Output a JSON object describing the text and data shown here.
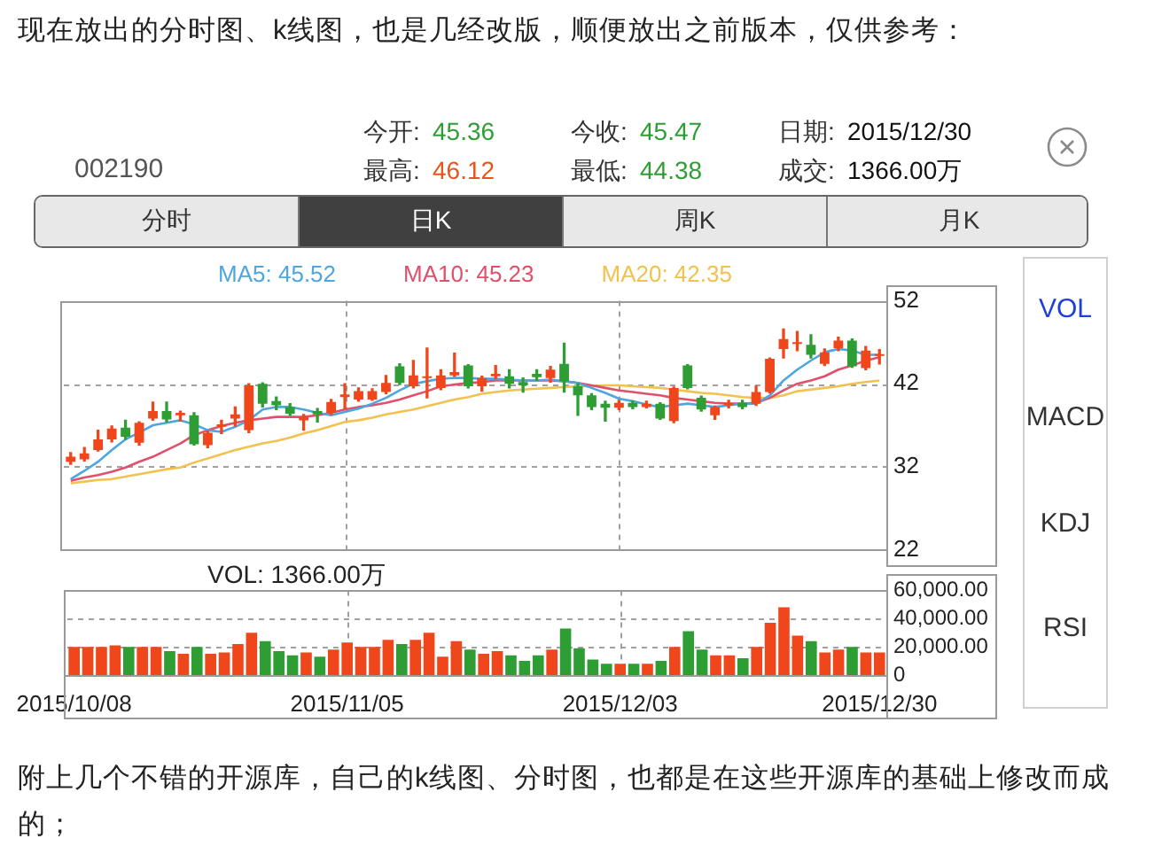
{
  "chart_data": [
    {
      "type": "candlestick",
      "categories": [
        "2015/10/08",
        null,
        null,
        null,
        null,
        null,
        null,
        null,
        null,
        null,
        null,
        null,
        null,
        null,
        null,
        null,
        null,
        null,
        null,
        null,
        "2015/11/05",
        null,
        null,
        null,
        null,
        null,
        null,
        null,
        null,
        null,
        null,
        null,
        null,
        null,
        null,
        null,
        null,
        null,
        null,
        null,
        "2015/12/03",
        null,
        null,
        null,
        null,
        null,
        null,
        null,
        null,
        null,
        null,
        null,
        null,
        null,
        null,
        null,
        null,
        null,
        null,
        "2015/12/30"
      ],
      "ohlc": [
        [
          32.6,
          33.7,
          32.3,
          33.2
        ],
        [
          32.9,
          34.3,
          32.7,
          33.6
        ],
        [
          34.0,
          36.4,
          33.9,
          35.3
        ],
        [
          35.3,
          36.9,
          35.0,
          36.6
        ],
        [
          36.7,
          37.6,
          35.3,
          35.6
        ],
        [
          34.9,
          37.4,
          34.6,
          37.3
        ],
        [
          37.8,
          39.8,
          37.6,
          38.7
        ],
        [
          38.7,
          39.8,
          37.4,
          37.7
        ],
        [
          38.2,
          38.7,
          37.5,
          38.5
        ],
        [
          38.2,
          38.5,
          34.6,
          34.7
        ],
        [
          34.6,
          36.3,
          34.3,
          36.1
        ],
        [
          36.8,
          37.6,
          36.0,
          37.1
        ],
        [
          37.8,
          39.2,
          36.9,
          38.3
        ],
        [
          36.4,
          42.0,
          36.1,
          41.8
        ],
        [
          42.0,
          42.1,
          39.2,
          39.6
        ],
        [
          39.9,
          40.4,
          38.9,
          39.4
        ],
        [
          39.2,
          39.6,
          38.2,
          38.4
        ],
        [
          37.6,
          38.3,
          36.4,
          38.0
        ],
        [
          38.7,
          39.0,
          37.4,
          38.3
        ],
        [
          38.5,
          40.1,
          38.3,
          39.8
        ],
        [
          40.4,
          42.0,
          39.0,
          40.7
        ],
        [
          40.1,
          41.5,
          39.9,
          41.1
        ],
        [
          40.1,
          41.4,
          40.0,
          41.1
        ],
        [
          41.0,
          43.0,
          40.8,
          42.1
        ],
        [
          44.1,
          44.4,
          41.9,
          42.1
        ],
        [
          41.7,
          44.8,
          41.5,
          43.0
        ],
        [
          42.7,
          46.3,
          40.3,
          42.9
        ],
        [
          41.5,
          43.7,
          41.3,
          43.0
        ],
        [
          43.0,
          45.7,
          42.9,
          43.4
        ],
        [
          44.2,
          44.3,
          41.5,
          41.7
        ],
        [
          41.7,
          42.9,
          41.1,
          42.7
        ],
        [
          42.9,
          44.2,
          42.6,
          43.2
        ],
        [
          42.9,
          43.7,
          41.5,
          42.0
        ],
        [
          42.2,
          42.7,
          41.0,
          41.8
        ],
        [
          43.2,
          43.7,
          42.4,
          42.8
        ],
        [
          42.7,
          44.1,
          42.2,
          43.7
        ],
        [
          44.4,
          46.9,
          41.0,
          42.3
        ],
        [
          41.7,
          42.0,
          38.2,
          40.6
        ],
        [
          40.6,
          40.8,
          38.9,
          39.2
        ],
        [
          39.6,
          39.9,
          37.5,
          39.1
        ],
        [
          39.1,
          40.0,
          38.9,
          39.7
        ],
        [
          39.7,
          39.9,
          39.0,
          39.2
        ],
        [
          39.2,
          39.9,
          39.1,
          39.6
        ],
        [
          39.6,
          39.7,
          37.7,
          37.8
        ],
        [
          37.5,
          41.6,
          37.3,
          41.5
        ],
        [
          44.2,
          44.3,
          41.4,
          41.5
        ],
        [
          40.3,
          40.5,
          38.7,
          38.9
        ],
        [
          38.2,
          39.3,
          37.7,
          39.2
        ],
        [
          39.4,
          40.0,
          39.1,
          39.7
        ],
        [
          39.7,
          40.0,
          39.0,
          39.2
        ],
        [
          39.6,
          41.7,
          39.4,
          41.0
        ],
        [
          41.0,
          45.1,
          40.9,
          45.0
        ],
        [
          46.2,
          48.6,
          45.1,
          47.4
        ],
        [
          46.8,
          48.3,
          46.0,
          46.9
        ],
        [
          46.7,
          47.9,
          45.1,
          45.5
        ],
        [
          44.4,
          46.2,
          44.2,
          45.8
        ],
        [
          46.3,
          47.6,
          46.0,
          47.2
        ],
        [
          47.2,
          47.4,
          44.0,
          44.1
        ],
        [
          43.9,
          46.5,
          43.7,
          46.0
        ],
        [
          45.36,
          46.12,
          44.38,
          45.47
        ]
      ],
      "colors": [
        "#f0461c",
        "#f0461c",
        "#f0461c",
        "#f0461c",
        "#2e9e34",
        "#f0461c",
        "#f0461c",
        "#2e9e34",
        "#f0461c",
        "#2e9e34",
        "#f0461c",
        "#f0461c",
        "#f0461c",
        "#f0461c",
        "#2e9e34",
        "#2e9e34",
        "#2e9e34",
        "#f0461c",
        "#2e9e34",
        "#f0461c",
        "#f0461c",
        "#f0461c",
        "#f0461c",
        "#f0461c",
        "#2e9e34",
        "#f0461c",
        "#f0461c",
        "#f0461c",
        "#f0461c",
        "#2e9e34",
        "#f0461c",
        "#f0461c",
        "#2e9e34",
        "#2e9e34",
        "#2e9e34",
        "#f0461c",
        "#2e9e34",
        "#2e9e34",
        "#2e9e34",
        "#2e9e34",
        "#f0461c",
        "#2e9e34",
        "#f0461c",
        "#2e9e34",
        "#f0461c",
        "#2e9e34",
        "#2e9e34",
        "#f0461c",
        "#f0461c",
        "#2e9e34",
        "#f0461c",
        "#f0461c",
        "#f0461c",
        "#f0461c",
        "#2e9e34",
        "#f0461c",
        "#f0461c",
        "#2e9e34",
        "#f0461c",
        "#f0461c"
      ],
      "series": [
        {
          "name": "MA5: 45.52",
          "type": "line",
          "color": "#4da6e0",
          "values": [
            30.5,
            31.5,
            32.6,
            34.0,
            35.3,
            36.1,
            37.0,
            37.3,
            37.6,
            37.1,
            36.4,
            36.2,
            36.8,
            37.6,
            38.9,
            39.2,
            39.2,
            38.9,
            38.5,
            38.2,
            38.6,
            39.0,
            39.6,
            40.3,
            41.2,
            42.0,
            42.3,
            42.6,
            42.7,
            42.7,
            42.6,
            42.6,
            42.5,
            42.4,
            42.4,
            42.5,
            42.3,
            42.1,
            41.5,
            40.9,
            40.2,
            39.9,
            39.5,
            39.2,
            39.4,
            39.6,
            39.4,
            39.2,
            39.4,
            39.6,
            39.6,
            40.6,
            42.4,
            43.7,
            44.8,
            45.8,
            46.2,
            46.0,
            45.5,
            45.5
          ]
        },
        {
          "name": "MA10: 45.23",
          "type": "line",
          "color": "#e0506a",
          "values": [
            30.3,
            30.7,
            31.0,
            31.4,
            31.9,
            32.6,
            33.2,
            34.0,
            34.8,
            35.8,
            36.4,
            36.9,
            37.3,
            37.6,
            37.8,
            38.0,
            38.0,
            38.0,
            38.2,
            38.5,
            38.9,
            39.2,
            39.4,
            39.7,
            40.1,
            40.6,
            41.1,
            41.7,
            41.9,
            42.1,
            42.2,
            42.4,
            42.4,
            42.4,
            42.4,
            42.4,
            42.3,
            42.1,
            41.8,
            41.5,
            41.2,
            41.0,
            40.8,
            40.6,
            40.3,
            40.1,
            39.9,
            39.7,
            39.6,
            39.6,
            39.7,
            40.3,
            41.2,
            42.0,
            42.4,
            42.9,
            43.7,
            44.2,
            44.8,
            45.2
          ]
        },
        {
          "name": "MA20: 42.35",
          "type": "line",
          "color": "#f2c14e",
          "values": [
            30.0,
            30.2,
            30.4,
            30.5,
            30.8,
            31.1,
            31.4,
            31.7,
            31.9,
            32.5,
            33.0,
            33.5,
            34.0,
            34.4,
            34.8,
            35.1,
            35.5,
            36.0,
            36.4,
            36.9,
            37.4,
            37.6,
            37.9,
            38.3,
            38.6,
            38.9,
            39.3,
            39.7,
            40.1,
            40.4,
            40.8,
            41.0,
            41.2,
            41.3,
            41.4,
            41.5,
            41.6,
            41.7,
            41.7,
            41.8,
            41.8,
            41.7,
            41.6,
            41.5,
            41.3,
            41.1,
            40.9,
            40.8,
            40.6,
            40.4,
            40.3,
            40.3,
            40.6,
            41.1,
            41.3,
            41.5,
            41.7,
            42.0,
            42.2,
            42.4
          ]
        }
      ],
      "ylim": [
        22,
        52
      ],
      "yticks": [
        22,
        32,
        42,
        52
      ],
      "grid": true,
      "legend": "top",
      "tick_labels": "y",
      "annotations": [
        "现在放出的分时图、k线图，也是几经改版，顺便放出之前版本，仅供参考：",
        "002190",
        "今开:",
        "45.36",
        "最高:",
        "46.12",
        "今收:",
        "45.47",
        "最低:",
        "44.38",
        "日期:",
        "2015/12/30",
        "成交:",
        "1366.00万",
        "分时",
        "日K",
        "周K",
        "月K",
        "VOL",
        "MACD",
        "KDJ",
        "RSI",
        "附上几个不错的开源库，自己的k线图、分时图，也都是在这些开源库的基础上修改而成的；"
      ]
    },
    {
      "type": "bar",
      "title": "VOL: 1366.00万",
      "categories": [
        "2015/10/08",
        null,
        null,
        null,
        null,
        null,
        null,
        null,
        null,
        null,
        null,
        null,
        null,
        null,
        null,
        null,
        null,
        null,
        null,
        null,
        "2015/11/05",
        null,
        null,
        null,
        null,
        null,
        null,
        null,
        null,
        null,
        null,
        null,
        null,
        null,
        null,
        null,
        null,
        null,
        null,
        null,
        "2015/12/03",
        null,
        null,
        null,
        null,
        null,
        null,
        null,
        null,
        null,
        null,
        null,
        null,
        null,
        null,
        null,
        null,
        null,
        null,
        "2015/12/30"
      ],
      "values": [
        20000,
        20000,
        20000,
        21000,
        20000,
        20000,
        20000,
        17000,
        15000,
        20000,
        15000,
        16000,
        22000,
        30000,
        24000,
        17000,
        14000,
        16000,
        13000,
        18000,
        23000,
        20000,
        20000,
        25000,
        22000,
        25000,
        30000,
        13000,
        24000,
        18000,
        15000,
        17000,
        14000,
        10000,
        14000,
        18000,
        33000,
        19000,
        11000,
        8000,
        8000,
        8000,
        8000,
        10000,
        20000,
        31000,
        18000,
        14000,
        14000,
        12000,
        20000,
        37000,
        48000,
        28000,
        24000,
        16000,
        18000,
        20000,
        16000,
        16000
      ],
      "colors": [
        "#f0461c",
        "#f0461c",
        "#f0461c",
        "#f0461c",
        "#2e9e34",
        "#f0461c",
        "#f0461c",
        "#2e9e34",
        "#f0461c",
        "#2e9e34",
        "#f0461c",
        "#f0461c",
        "#f0461c",
        "#f0461c",
        "#2e9e34",
        "#2e9e34",
        "#2e9e34",
        "#f0461c",
        "#2e9e34",
        "#f0461c",
        "#f0461c",
        "#f0461c",
        "#f0461c",
        "#f0461c",
        "#2e9e34",
        "#f0461c",
        "#f0461c",
        "#f0461c",
        "#f0461c",
        "#2e9e34",
        "#f0461c",
        "#f0461c",
        "#2e9e34",
        "#2e9e34",
        "#2e9e34",
        "#f0461c",
        "#2e9e34",
        "#2e9e34",
        "#2e9e34",
        "#2e9e34",
        "#f0461c",
        "#2e9e34",
        "#f0461c",
        "#2e9e34",
        "#f0461c",
        "#2e9e34",
        "#2e9e34",
        "#f0461c",
        "#f0461c",
        "#2e9e34",
        "#f0461c",
        "#f0461c",
        "#f0461c",
        "#f0461c",
        "#2e9e34",
        "#f0461c",
        "#f0461c",
        "#2e9e34",
        "#f0461c",
        "#f0461c"
      ],
      "ylim": [
        0,
        60000
      ],
      "yticks": [
        0,
        {
          "value": 20000,
          "label": "20,000.00"
        },
        {
          "value": 40000,
          "label": "40,000.00"
        },
        {
          "value": 60000,
          "label": "60,000.00"
        }
      ],
      "grid": true
    }
  ]
}
